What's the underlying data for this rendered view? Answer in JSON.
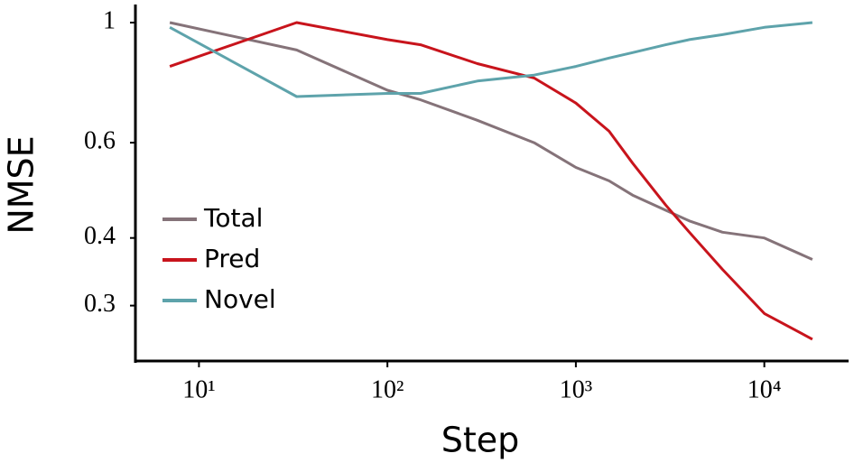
{
  "chart_data": {
    "type": "line",
    "x_label": "Step",
    "y_label": "NMSE",
    "xscale": "log",
    "yscale": "log",
    "xlim": [
      4.6,
      28000
    ],
    "ylim": [
      0.237,
      1.08
    ],
    "xticks": [
      {
        "value": 10,
        "label": "10¹"
      },
      {
        "value": 100,
        "label": "10²"
      },
      {
        "value": 1000,
        "label": "10³"
      },
      {
        "value": 10000,
        "label": "10⁴"
      }
    ],
    "yticks": [
      1,
      0.6,
      0.4,
      0.3
    ],
    "legend": "left",
    "x": [
      7,
      33,
      100,
      150,
      300,
      600,
      1000,
      1500,
      2000,
      3000,
      4000,
      6000,
      10000,
      18000
    ],
    "series": [
      {
        "name": "Total",
        "color": "#857379",
        "values": [
          1.0,
          0.89,
          0.75,
          0.72,
          0.66,
          0.6,
          0.54,
          0.51,
          0.48,
          0.45,
          0.43,
          0.41,
          0.4,
          0.365
        ]
      },
      {
        "name": "Pred",
        "color": "#c8141c",
        "values": [
          0.83,
          1.0,
          0.93,
          0.91,
          0.84,
          0.79,
          0.71,
          0.63,
          0.55,
          0.46,
          0.41,
          0.35,
          0.29,
          0.26
        ]
      },
      {
        "name": "Novel",
        "color": "#5ea3ab",
        "values": [
          0.98,
          0.73,
          0.74,
          0.74,
          0.78,
          0.8,
          0.83,
          0.86,
          0.88,
          0.91,
          0.93,
          0.95,
          0.98,
          1.0
        ]
      }
    ]
  }
}
